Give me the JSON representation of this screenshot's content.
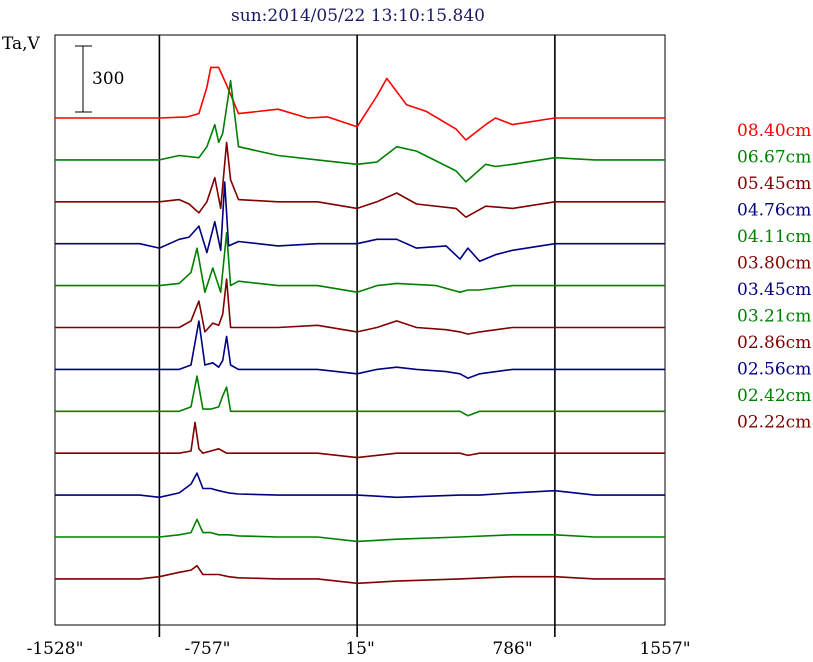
{
  "chart_data": {
    "type": "line",
    "title": "sun:2014/05/22 13:10:15.840",
    "ylabel": "Ta,V",
    "scale_bar_label": "300",
    "scale_bar_value": 300,
    "x_ticks": [
      -1528,
      -757,
      15,
      786,
      1557
    ],
    "x_tick_labels": [
      "-1528\"",
      "-757\"",
      "15\"",
      "786\"",
      "1557\""
    ],
    "xlim": [
      -1528,
      1557
    ],
    "vertical_lines": [
      -1000,
      0,
      1000
    ],
    "legend_position": "right",
    "series": [
      {
        "name": "08.40cm",
        "color": "#ff0000",
        "offset": 0,
        "x": [
          -1528,
          -1000,
          -860,
          -800,
          -760,
          -740,
          -700,
          -660,
          -600,
          -400,
          -250,
          -150,
          0,
          100,
          150,
          250,
          350,
          500,
          550,
          650,
          700,
          786,
          1000,
          1200,
          1557
        ],
        "y": [
          0,
          0,
          5,
          20,
          140,
          230,
          230,
          150,
          20,
          40,
          0,
          5,
          -40,
          100,
          180,
          60,
          30,
          -50,
          -100,
          -30,
          0,
          -30,
          0,
          0,
          0
        ]
      },
      {
        "name": "06.67cm",
        "color": "#008000",
        "offset": 1,
        "x": [
          -1528,
          -1000,
          -900,
          -800,
          -760,
          -720,
          -700,
          -680,
          -640,
          -600,
          -400,
          -200,
          0,
          100,
          200,
          300,
          500,
          550,
          650,
          700,
          786,
          1000,
          1200,
          1557
        ],
        "y": [
          0,
          0,
          20,
          10,
          60,
          160,
          80,
          120,
          360,
          60,
          20,
          0,
          -20,
          -10,
          60,
          40,
          -50,
          -100,
          -20,
          -30,
          -20,
          10,
          0,
          0
        ]
      },
      {
        "name": "05.45cm",
        "color": "#800000",
        "offset": 2,
        "x": [
          -1528,
          -1000,
          -900,
          -850,
          -800,
          -760,
          -720,
          -690,
          -660,
          -640,
          -600,
          -400,
          -200,
          0,
          100,
          200,
          300,
          500,
          550,
          650,
          786,
          1000,
          1200,
          1557
        ],
        "y": [
          0,
          0,
          10,
          -10,
          -50,
          0,
          110,
          -30,
          270,
          100,
          10,
          0,
          0,
          -30,
          0,
          40,
          -10,
          -30,
          -70,
          -20,
          -30,
          0,
          0,
          0
        ]
      },
      {
        "name": "04.76cm",
        "color": "#000080",
        "offset": 3,
        "x": [
          -1528,
          -1100,
          -1000,
          -900,
          -850,
          -800,
          -760,
          -720,
          -690,
          -670,
          -650,
          -600,
          -400,
          -200,
          0,
          100,
          200,
          300,
          450,
          520,
          560,
          620,
          700,
          786,
          1000,
          1200,
          1557
        ],
        "y": [
          0,
          0,
          -20,
          20,
          30,
          80,
          -40,
          100,
          -30,
          280,
          -10,
          10,
          -10,
          0,
          0,
          20,
          20,
          -20,
          -10,
          -70,
          -20,
          -80,
          -50,
          -30,
          0,
          0,
          0
        ]
      },
      {
        "name": "04.11cm",
        "color": "#008000",
        "offset": 4,
        "x": [
          -1528,
          -1000,
          -900,
          -840,
          -810,
          -770,
          -730,
          -690,
          -660,
          -640,
          -600,
          -400,
          -200,
          0,
          100,
          200,
          400,
          520,
          560,
          620,
          786,
          1000,
          1200,
          1557
        ],
        "y": [
          0,
          0,
          10,
          60,
          170,
          -30,
          80,
          -30,
          240,
          0,
          20,
          0,
          0,
          -30,
          0,
          10,
          0,
          -30,
          -20,
          -20,
          0,
          0,
          0,
          0
        ]
      },
      {
        "name": "03.80cm",
        "color": "#800000",
        "offset": 5,
        "x": [
          -1528,
          -1000,
          -900,
          -840,
          -800,
          -770,
          -730,
          -700,
          -680,
          -660,
          -640,
          -600,
          -400,
          -200,
          0,
          100,
          200,
          300,
          450,
          520,
          560,
          620,
          786,
          1000,
          1200,
          1557
        ],
        "y": [
          0,
          0,
          0,
          30,
          120,
          -20,
          20,
          10,
          60,
          220,
          0,
          0,
          0,
          10,
          -20,
          0,
          30,
          0,
          -10,
          -20,
          -30,
          -20,
          0,
          0,
          0,
          0
        ]
      },
      {
        "name": "03.45cm",
        "color": "#000080",
        "offset": 6,
        "x": [
          -1528,
          -1000,
          -900,
          -840,
          -800,
          -770,
          -730,
          -700,
          -680,
          -660,
          -640,
          -600,
          -400,
          -200,
          0,
          100,
          200,
          300,
          450,
          520,
          560,
          620,
          786,
          1000,
          1200,
          1557
        ],
        "y": [
          0,
          0,
          0,
          20,
          220,
          20,
          30,
          10,
          40,
          150,
          20,
          0,
          0,
          0,
          -20,
          0,
          10,
          0,
          -10,
          -20,
          -40,
          -20,
          0,
          0,
          0,
          0
        ]
      },
      {
        "name": "03.21cm",
        "color": "#008000",
        "offset": 7,
        "x": [
          -1528,
          -1000,
          -900,
          -840,
          -810,
          -780,
          -740,
          -700,
          -680,
          -660,
          -640,
          -600,
          -400,
          -200,
          0,
          200,
          520,
          560,
          620,
          786,
          1000,
          1200,
          1557
        ],
        "y": [
          0,
          0,
          0,
          20,
          160,
          10,
          10,
          20,
          70,
          110,
          0,
          0,
          0,
          0,
          0,
          0,
          0,
          -20,
          0,
          0,
          0,
          0,
          0
        ]
      },
      {
        "name": "02.86cm",
        "color": "#800000",
        "offset": 8,
        "x": [
          -1528,
          -1000,
          -900,
          -840,
          -820,
          -800,
          -780,
          -740,
          -700,
          -680,
          -660,
          -600,
          -400,
          -200,
          0,
          200,
          520,
          560,
          620,
          786,
          1000,
          1200,
          1557
        ],
        "y": [
          0,
          0,
          0,
          10,
          140,
          20,
          0,
          10,
          20,
          10,
          0,
          0,
          0,
          0,
          -20,
          0,
          0,
          -10,
          0,
          0,
          0,
          0,
          0
        ]
      },
      {
        "name": "02.56cm",
        "color": "#000080",
        "offset": 9,
        "x": [
          -1528,
          -1100,
          -1000,
          -900,
          -840,
          -810,
          -780,
          -740,
          -700,
          -650,
          -600,
          -400,
          -200,
          0,
          200,
          520,
          560,
          620,
          786,
          1000,
          1200,
          1557
        ],
        "y": [
          0,
          0,
          -10,
          10,
          50,
          100,
          30,
          30,
          20,
          10,
          5,
          0,
          0,
          0,
          -10,
          0,
          0,
          0,
          10,
          20,
          0,
          0
        ]
      },
      {
        "name": "02.42cm",
        "color": "#008000",
        "offset": 10,
        "x": [
          -1528,
          -1100,
          -1000,
          -900,
          -840,
          -810,
          -780,
          -740,
          -700,
          -650,
          -600,
          -400,
          -200,
          0,
          200,
          520,
          786,
          1000,
          1200,
          1557
        ],
        "y": [
          0,
          0,
          0,
          10,
          20,
          80,
          20,
          20,
          10,
          10,
          5,
          0,
          0,
          -20,
          -10,
          0,
          10,
          10,
          0,
          0
        ]
      },
      {
        "name": "02.22cm",
        "color": "#800000",
        "offset": 11,
        "x": [
          -1528,
          -1100,
          -1000,
          -900,
          -840,
          -810,
          -780,
          -740,
          -700,
          -650,
          -600,
          -400,
          -200,
          0,
          200,
          520,
          786,
          1000,
          1200,
          1557
        ],
        "y": [
          0,
          0,
          10,
          30,
          40,
          60,
          20,
          20,
          20,
          10,
          5,
          0,
          0,
          -20,
          -10,
          0,
          10,
          10,
          0,
          0
        ]
      }
    ]
  }
}
